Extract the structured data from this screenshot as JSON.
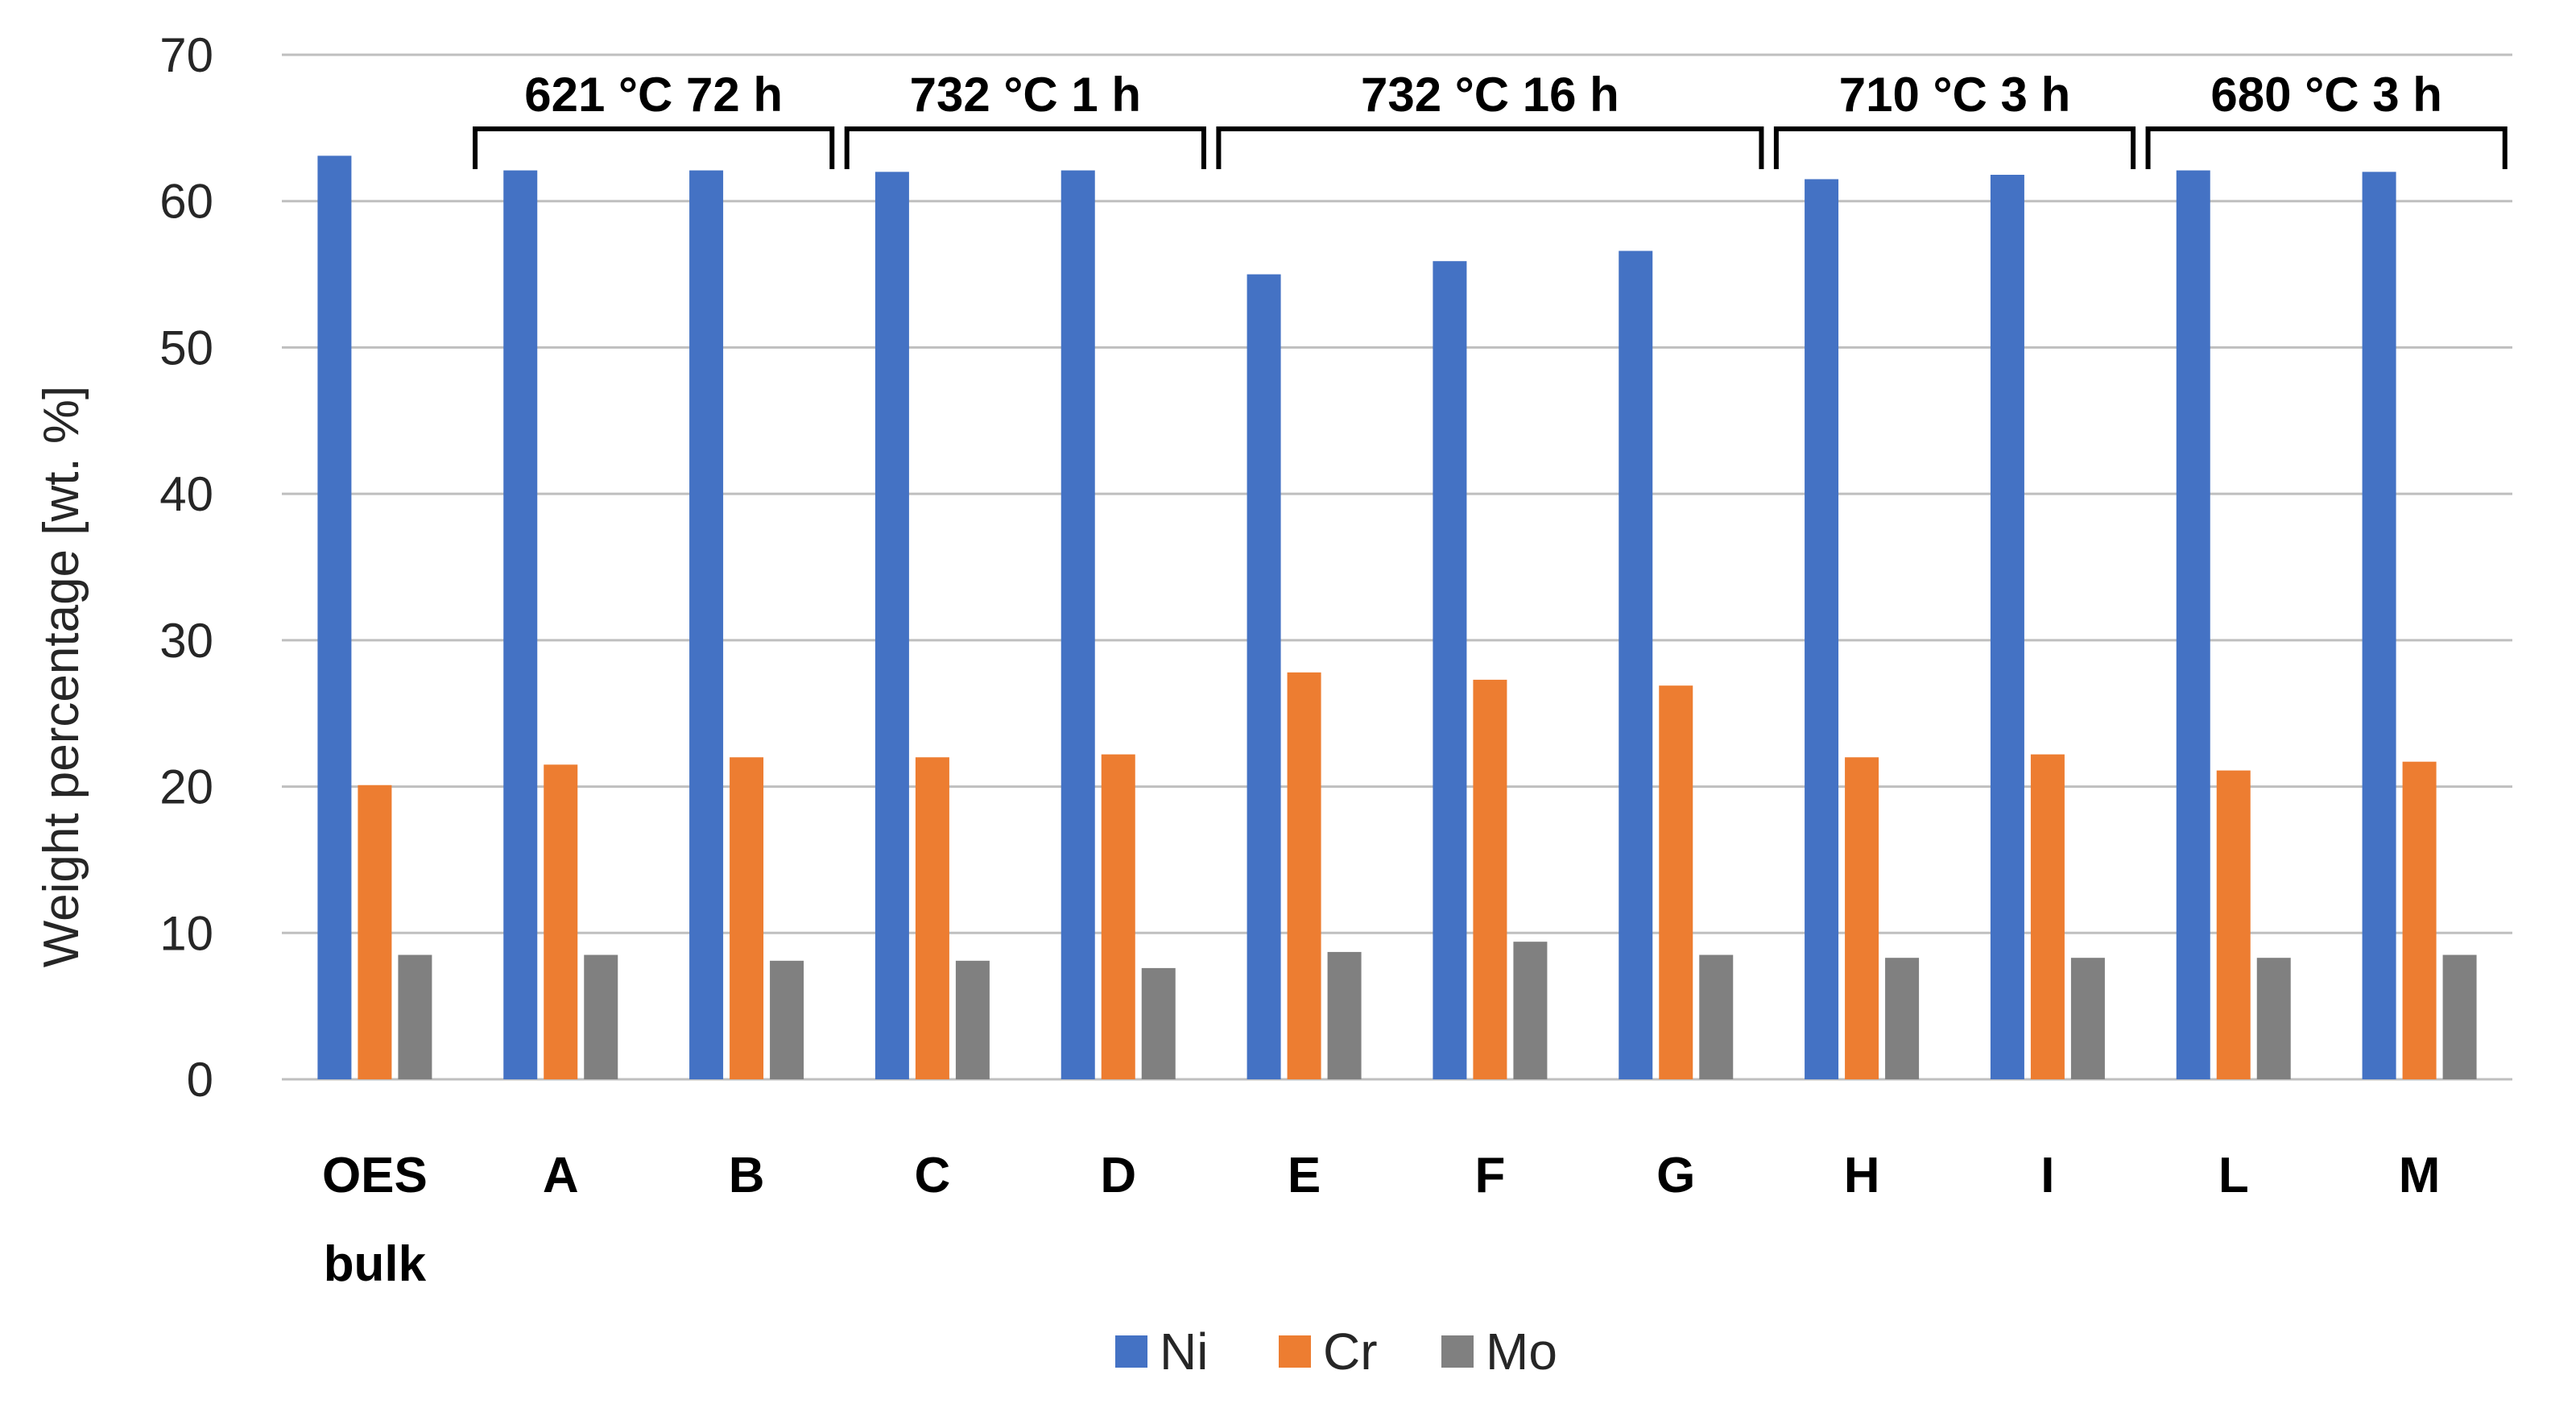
{
  "chart_data": {
    "type": "bar",
    "ylabel": "Weight percentage [wt. %]",
    "ylim": [
      0,
      70
    ],
    "yticks": [
      0,
      10,
      20,
      30,
      40,
      50,
      60,
      70
    ],
    "categories": [
      [
        "OES",
        "bulk"
      ],
      [
        "A"
      ],
      [
        "B"
      ],
      [
        "C"
      ],
      [
        "D"
      ],
      [
        "E"
      ],
      [
        "F"
      ],
      [
        "G"
      ],
      [
        "H"
      ],
      [
        "I"
      ],
      [
        "L"
      ],
      [
        "M"
      ]
    ],
    "series": [
      {
        "name": "Ni",
        "color": "#4472c4",
        "values": [
          63.1,
          62.1,
          62.1,
          62.0,
          62.1,
          55.0,
          55.9,
          56.6,
          61.5,
          61.8,
          62.1,
          62.0
        ]
      },
      {
        "name": "Cr",
        "color": "#ed7d31",
        "values": [
          20.1,
          21.5,
          22.0,
          22.0,
          22.2,
          27.8,
          27.3,
          26.9,
          22.0,
          22.2,
          21.1,
          21.7
        ]
      },
      {
        "name": "Mo",
        "color": "#808080",
        "values": [
          8.5,
          8.5,
          8.1,
          8.1,
          7.6,
          8.7,
          9.4,
          8.5,
          8.3,
          8.3,
          8.3,
          8.5
        ]
      }
    ],
    "groups": [
      {
        "label": "621 °C 72 h",
        "from": 1,
        "to": 2
      },
      {
        "label": "732 °C 1 h",
        "from": 3,
        "to": 4
      },
      {
        "label": "732 °C 16 h",
        "from": 5,
        "to": 7
      },
      {
        "label": "710 °C 3 h",
        "from": 8,
        "to": 9
      },
      {
        "label": "680 °C 3 h",
        "from": 10,
        "to": 11
      }
    ],
    "grid": true,
    "legend": "bottom"
  }
}
